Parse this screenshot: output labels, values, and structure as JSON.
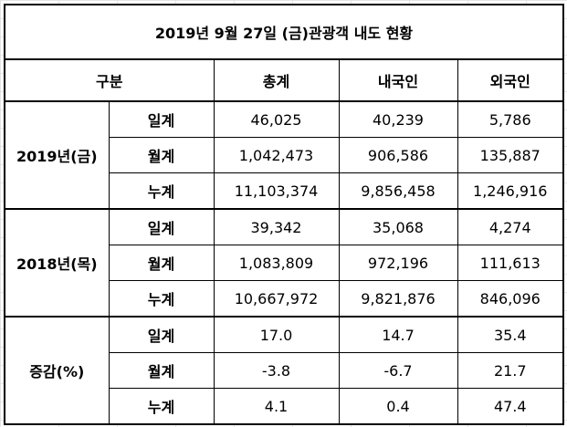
{
  "title": "2019년 9월 27일 (금)관광객 내도 현황",
  "header": [
    "구분",
    "총계",
    "내국인",
    "외국인"
  ],
  "groups": [
    {
      "label": "2019년(금)",
      "rows": [
        {
          "label": "일계",
          "cells": [
            "46,025",
            "40,239",
            "5,786"
          ]
        },
        {
          "label": "월계",
          "cells": [
            "1,042,473",
            "906,586",
            "135,887"
          ]
        },
        {
          "label": "누계",
          "cells": [
            "11,103,374",
            "9,856,458",
            "1,246,916"
          ]
        }
      ]
    },
    {
      "label": "2018년(목)",
      "rows": [
        {
          "label": "일계",
          "cells": [
            "39,342",
            "35,068",
            "4,274"
          ]
        },
        {
          "label": "월계",
          "cells": [
            "1,083,809",
            "972,196",
            "111,613"
          ]
        },
        {
          "label": "누계",
          "cells": [
            "10,667,972",
            "9,821,876",
            "846,096"
          ]
        }
      ]
    },
    {
      "label": "증감(%)",
      "rows": [
        {
          "label": "일계",
          "cells": [
            "17.0",
            "14.7",
            "35.4"
          ]
        },
        {
          "label": "월계",
          "cells": [
            "-3.8",
            "-6.7",
            "21.7"
          ]
        },
        {
          "label": "누계",
          "cells": [
            "4.1",
            "0.4",
            "47.4"
          ]
        }
      ]
    }
  ]
}
